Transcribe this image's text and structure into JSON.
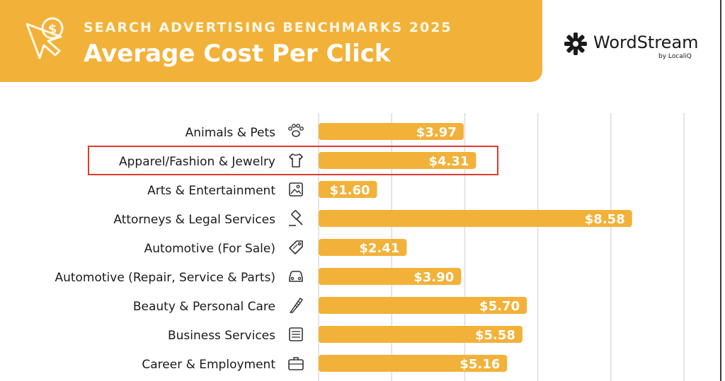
{
  "header": {
    "subtitle": "SEARCH ADVERTISING BENCHMARKS 2025",
    "title": "Average Cost Per Click",
    "icon": "cursor-dollar-icon",
    "accent_color": "#f2b138"
  },
  "brand": {
    "name": "WordStream",
    "sub": "by LocaliQ"
  },
  "highlight": {
    "category": "Apparel/Fashion & Jewelry",
    "color": "#e03a2e"
  },
  "chart_data": {
    "type": "bar",
    "orientation": "horizontal",
    "title": "Average Cost Per Click",
    "subtitle": "SEARCH ADVERTISING BENCHMARKS 2025",
    "categories": [
      "Animals & Pets",
      "Apparel/Fashion & Jewelry",
      "Arts & Entertainment",
      "Attorneys & Legal Services",
      "Automotive (For Sale)",
      "Automotive (Repair, Service & Parts)",
      "Beauty & Personal Care",
      "Business Services",
      "Career & Employment"
    ],
    "values": [
      3.97,
      4.31,
      1.6,
      8.58,
      2.41,
      3.9,
      5.7,
      5.58,
      5.16
    ],
    "value_labels": [
      "$3.97",
      "$4.31",
      "$1.60",
      "$8.58",
      "$2.41",
      "$3.90",
      "$5.70",
      "$5.58",
      "$5.16"
    ],
    "icons": [
      "paw-icon",
      "tshirt-icon",
      "picture-frame-icon",
      "gavel-icon",
      "price-tag-icon",
      "car-icon",
      "comb-icon",
      "document-icon",
      "briefcase-icon"
    ],
    "xlim": [
      0,
      10
    ],
    "gridlines": [
      2,
      4,
      6,
      8,
      10
    ],
    "grid": true,
    "bar_color": "#f2b138",
    "label_color": "#ffffff"
  }
}
